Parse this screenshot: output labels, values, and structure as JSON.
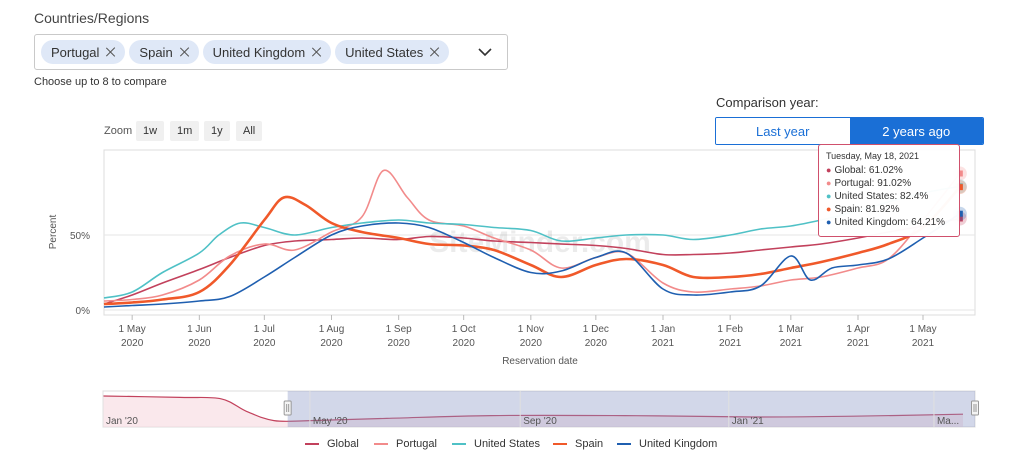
{
  "filter": {
    "label": "Countries/Regions",
    "chips": [
      "Portugal",
      "Spain",
      "United Kingdom",
      "United States"
    ],
    "hint": "Choose up to 8 to compare"
  },
  "comparison": {
    "label": "Comparison year:",
    "options": [
      "Last year",
      "2 years ago"
    ],
    "selected": "2 years ago"
  },
  "zoom": {
    "label": "Zoom",
    "buttons": [
      "1w",
      "1m",
      "1y",
      "All"
    ]
  },
  "tooltip": {
    "date": "Tuesday, May 18, 2021",
    "rows": [
      {
        "text": "Global: 61.02%",
        "color": "#c2415c"
      },
      {
        "text": "Portugal: 91.02%",
        "color": "#f28b8b"
      },
      {
        "text": "United States: 82.4%",
        "color": "#4fc1c6"
      },
      {
        "text": "Spain: 81.92%",
        "color": "#f0592a"
      },
      {
        "text": "United Kingdom: 64.21%",
        "color": "#1f5fb0"
      }
    ]
  },
  "watermark": "SiteMinder.com",
  "chart_data": {
    "type": "line",
    "ylabel": "Percent",
    "xlabel": "Reservation date",
    "y_ticks": [
      "0%",
      "50%"
    ],
    "ylim": [
      0,
      120
    ],
    "x_ticks": [
      {
        "month": "1 May",
        "year": "2020"
      },
      {
        "month": "1 Jun",
        "year": "2020"
      },
      {
        "month": "1 Jul",
        "year": "2020"
      },
      {
        "month": "1 Aug",
        "year": "2020"
      },
      {
        "month": "1 Sep",
        "year": "2020"
      },
      {
        "month": "1 Oct",
        "year": "2020"
      },
      {
        "month": "1 Nov",
        "year": "2020"
      },
      {
        "month": "1 Dec",
        "year": "2020"
      },
      {
        "month": "1 Jan",
        "year": "2021"
      },
      {
        "month": "1 Feb",
        "year": "2021"
      },
      {
        "month": "1 Mar",
        "year": "2021"
      },
      {
        "month": "1 Apr",
        "year": "2021"
      },
      {
        "month": "1 May",
        "year": "2021"
      }
    ],
    "series": [
      {
        "name": "Global",
        "color": "#c2415c",
        "width": 1.6,
        "points": [
          [
            "2020-04-18",
            4
          ],
          [
            "2020-05-01",
            10
          ],
          [
            "2020-05-15",
            18
          ],
          [
            "2020-06-01",
            27
          ],
          [
            "2020-06-15",
            35
          ],
          [
            "2020-07-01",
            43
          ],
          [
            "2020-07-15",
            46
          ],
          [
            "2020-08-01",
            47
          ],
          [
            "2020-08-15",
            48
          ],
          [
            "2020-09-01",
            47
          ],
          [
            "2020-09-15",
            49
          ],
          [
            "2020-10-01",
            48
          ],
          [
            "2020-10-15",
            46
          ],
          [
            "2020-11-01",
            45
          ],
          [
            "2020-11-15",
            44
          ],
          [
            "2020-12-01",
            43
          ],
          [
            "2020-12-15",
            41
          ],
          [
            "2021-01-01",
            37
          ],
          [
            "2021-01-15",
            37
          ],
          [
            "2021-02-01",
            38
          ],
          [
            "2021-02-15",
            40
          ],
          [
            "2021-03-01",
            42
          ],
          [
            "2021-03-15",
            44
          ],
          [
            "2021-04-01",
            48
          ],
          [
            "2021-04-15",
            52
          ],
          [
            "2021-05-01",
            56
          ],
          [
            "2021-05-18",
            61
          ]
        ]
      },
      {
        "name": "Portugal",
        "color": "#f28b8b",
        "width": 1.6,
        "points": [
          [
            "2020-04-18",
            6
          ],
          [
            "2020-05-01",
            7
          ],
          [
            "2020-05-15",
            10
          ],
          [
            "2020-06-01",
            20
          ],
          [
            "2020-06-15",
            36
          ],
          [
            "2020-07-01",
            44
          ],
          [
            "2020-07-15",
            40
          ],
          [
            "2020-08-01",
            52
          ],
          [
            "2020-08-15",
            62
          ],
          [
            "2020-08-25",
            93
          ],
          [
            "2020-09-05",
            75
          ],
          [
            "2020-09-15",
            60
          ],
          [
            "2020-10-01",
            56
          ],
          [
            "2020-10-15",
            48
          ],
          [
            "2020-11-01",
            40
          ],
          [
            "2020-11-15",
            28
          ],
          [
            "2020-12-01",
            35
          ],
          [
            "2020-12-15",
            38
          ],
          [
            "2021-01-01",
            18
          ],
          [
            "2021-01-15",
            12
          ],
          [
            "2021-02-01",
            14
          ],
          [
            "2021-02-15",
            16
          ],
          [
            "2021-03-01",
            20
          ],
          [
            "2021-03-15",
            22
          ],
          [
            "2021-04-01",
            28
          ],
          [
            "2021-04-15",
            34
          ],
          [
            "2021-05-01",
            60
          ],
          [
            "2021-05-18",
            91
          ]
        ]
      },
      {
        "name": "United States",
        "color": "#4fc1c6",
        "width": 1.6,
        "points": [
          [
            "2020-04-18",
            8
          ],
          [
            "2020-05-01",
            12
          ],
          [
            "2020-05-15",
            25
          ],
          [
            "2020-06-01",
            38
          ],
          [
            "2020-06-10",
            50
          ],
          [
            "2020-06-20",
            58
          ],
          [
            "2020-07-01",
            55
          ],
          [
            "2020-07-15",
            50
          ],
          [
            "2020-08-01",
            55
          ],
          [
            "2020-08-15",
            58
          ],
          [
            "2020-09-01",
            60
          ],
          [
            "2020-09-15",
            58
          ],
          [
            "2020-10-01",
            57
          ],
          [
            "2020-10-15",
            55
          ],
          [
            "2020-11-01",
            53
          ],
          [
            "2020-11-15",
            46
          ],
          [
            "2020-12-01",
            48
          ],
          [
            "2020-12-15",
            50
          ],
          [
            "2021-01-01",
            50
          ],
          [
            "2021-01-15",
            47
          ],
          [
            "2021-02-01",
            50
          ],
          [
            "2021-02-15",
            54
          ],
          [
            "2021-03-01",
            56
          ],
          [
            "2021-03-15",
            60
          ],
          [
            "2021-04-01",
            66
          ],
          [
            "2021-04-15",
            72
          ],
          [
            "2021-05-01",
            78
          ],
          [
            "2021-05-18",
            82.4
          ]
        ]
      },
      {
        "name": "Spain",
        "color": "#f0592a",
        "width": 2.6,
        "points": [
          [
            "2020-04-18",
            4
          ],
          [
            "2020-05-01",
            5
          ],
          [
            "2020-05-15",
            7
          ],
          [
            "2020-06-01",
            12
          ],
          [
            "2020-06-15",
            30
          ],
          [
            "2020-07-01",
            60
          ],
          [
            "2020-07-10",
            75
          ],
          [
            "2020-07-20",
            70
          ],
          [
            "2020-08-01",
            58
          ],
          [
            "2020-08-15",
            52
          ],
          [
            "2020-09-01",
            48
          ],
          [
            "2020-09-15",
            44
          ],
          [
            "2020-10-01",
            43
          ],
          [
            "2020-10-15",
            40
          ],
          [
            "2020-11-01",
            30
          ],
          [
            "2020-11-15",
            22
          ],
          [
            "2020-12-01",
            30
          ],
          [
            "2020-12-15",
            34
          ],
          [
            "2021-01-01",
            30
          ],
          [
            "2021-01-15",
            22
          ],
          [
            "2021-02-01",
            22
          ],
          [
            "2021-02-15",
            24
          ],
          [
            "2021-03-01",
            28
          ],
          [
            "2021-03-15",
            32
          ],
          [
            "2021-04-01",
            38
          ],
          [
            "2021-04-15",
            44
          ],
          [
            "2021-05-01",
            55
          ],
          [
            "2021-05-18",
            81.9
          ]
        ]
      },
      {
        "name": "United Kingdom",
        "color": "#1f5fb0",
        "width": 1.6,
        "points": [
          [
            "2020-04-18",
            2
          ],
          [
            "2020-05-01",
            3
          ],
          [
            "2020-05-15",
            4
          ],
          [
            "2020-06-01",
            6
          ],
          [
            "2020-06-15",
            9
          ],
          [
            "2020-07-01",
            22
          ],
          [
            "2020-07-15",
            35
          ],
          [
            "2020-08-01",
            50
          ],
          [
            "2020-08-15",
            56
          ],
          [
            "2020-09-01",
            58
          ],
          [
            "2020-09-15",
            55
          ],
          [
            "2020-10-01",
            45
          ],
          [
            "2020-10-15",
            35
          ],
          [
            "2020-11-01",
            25
          ],
          [
            "2020-11-15",
            26
          ],
          [
            "2020-12-01",
            35
          ],
          [
            "2020-12-15",
            38
          ],
          [
            "2021-01-01",
            14
          ],
          [
            "2021-01-15",
            10
          ],
          [
            "2021-02-01",
            12
          ],
          [
            "2021-02-15",
            16
          ],
          [
            "2021-03-01",
            36
          ],
          [
            "2021-03-10",
            20
          ],
          [
            "2021-03-20",
            28
          ],
          [
            "2021-04-01",
            30
          ],
          [
            "2021-04-15",
            34
          ],
          [
            "2021-05-01",
            48
          ],
          [
            "2021-05-18",
            64.2
          ]
        ]
      }
    ],
    "navigator": {
      "labels": [
        "Jan '20",
        "May '20",
        "Sep '20",
        "Jan '21",
        "Ma..."
      ],
      "points": [
        [
          "2020-01-01",
          1.0
        ],
        [
          "2020-02-15",
          0.95
        ],
        [
          "2020-03-10",
          0.9
        ],
        [
          "2020-03-25",
          0.45
        ],
        [
          "2020-04-10",
          0.12
        ],
        [
          "2020-05-01",
          0.12
        ],
        [
          "2020-06-15",
          0.2
        ],
        [
          "2020-08-15",
          0.3
        ],
        [
          "2020-11-01",
          0.3
        ],
        [
          "2021-01-15",
          0.25
        ],
        [
          "2021-03-15",
          0.28
        ],
        [
          "2021-05-18",
          0.35
        ]
      ]
    }
  }
}
